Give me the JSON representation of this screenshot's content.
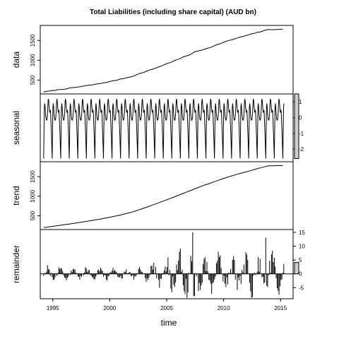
{
  "chart_data": {
    "type": "line",
    "title": "Total Liabilities (including share capital) (AUD bn)",
    "xlabel": "time",
    "x_range": [
      1993.9,
      2016.1
    ],
    "x_ticks": [
      "1995",
      "2000",
      "2005",
      "2010",
      "2015"
    ],
    "x_tick_values": [
      1995,
      2000,
      2005,
      2010,
      2015
    ],
    "panels": [
      {
        "name": "data",
        "ylabel": "data",
        "ylim": [
          150,
          1880
        ],
        "y_ticks": [
          "500",
          "1000",
          "1500"
        ],
        "y_tick_values": [
          500,
          1000,
          1500
        ],
        "tick_side": "left",
        "x": [
          1994.2,
          1995,
          1996,
          1997,
          1998,
          1999,
          2000,
          2001,
          2002,
          2002.5,
          2003,
          2004,
          2005,
          2006,
          2007,
          2007.5,
          2008,
          2009,
          2010,
          2011,
          2012,
          2013,
          2013.9,
          2014.5,
          2015.3
        ],
        "values": [
          200,
          235,
          275,
          315,
          360,
          405,
          460,
          525,
          595,
          650,
          700,
          800,
          910,
          1025,
          1140,
          1215,
          1250,
          1345,
          1455,
          1545,
          1625,
          1705,
          1775,
          1780,
          1780
        ]
      },
      {
        "name": "seasonal",
        "ylabel": "seasonal",
        "ylim": [
          -2.8,
          1.5
        ],
        "y_ticks": [
          "1",
          "0",
          "-1",
          "-2"
        ],
        "y_tick_values": [
          1,
          0,
          -1,
          -2
        ],
        "tick_side": "right",
        "period_years": 0.75,
        "cycle_phase": [
          0,
          0.08,
          0.14,
          0.2,
          0.28,
          0.36,
          0.44,
          0.5,
          0.56,
          0.62,
          0.7,
          0.8,
          0.9,
          1.0
        ],
        "cycle_values": [
          -2.6,
          0.6,
          1.0,
          0.3,
          -0.1,
          -0.2,
          0.1,
          0.9,
          1.3,
          0.8,
          0.3,
          0.5,
          -0.9,
          -2.6
        ]
      },
      {
        "name": "trend",
        "ylabel": "trend",
        "ylim": [
          150,
          1880
        ],
        "y_ticks": [
          "500",
          "1000",
          "1500"
        ],
        "y_tick_values": [
          500,
          1000,
          1500
        ],
        "tick_side": "left",
        "x": [
          1994.2,
          1995,
          1996,
          1997,
          1998,
          1999,
          2000,
          2001,
          2002,
          2003,
          2004,
          2005,
          2006,
          2007,
          2008,
          2009,
          2010,
          2011,
          2012,
          2013,
          2013.9,
          2014.5,
          2015.3
        ],
        "values": [
          200,
          232,
          272,
          315,
          360,
          408,
          462,
          525,
          598,
          695,
          800,
          908,
          1020,
          1135,
          1250,
          1350,
          1455,
          1545,
          1625,
          1705,
          1775,
          1780,
          1780
        ]
      },
      {
        "name": "remainder",
        "ylabel": "remainder",
        "ylim": [
          -9,
          16
        ],
        "y_ticks": [
          "15",
          "10",
          "5",
          "0",
          "-5"
        ],
        "y_tick_values": [
          15,
          10,
          5,
          0,
          -5
        ],
        "tick_side": "right",
        "type": "bar"
      }
    ],
    "scale_bars": [
      {
        "panel": "seasonal",
        "range": [
          -2.6,
          1.5
        ]
      },
      {
        "panel": "remainder",
        "range": [
          0,
          4.1
        ]
      }
    ]
  }
}
